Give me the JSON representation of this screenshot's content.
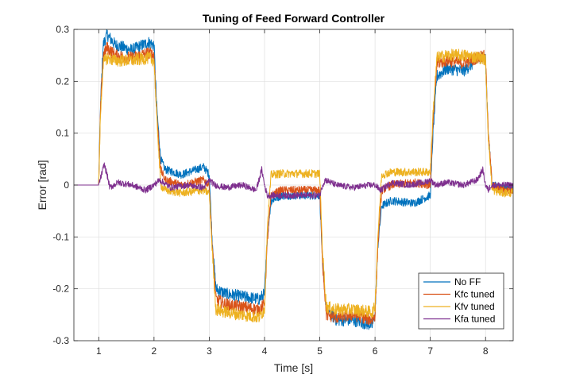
{
  "chart_data": {
    "type": "line",
    "title": "Tuning of Feed Forward Controller",
    "xlabel": "Time [s]",
    "ylabel": "Error [rad]",
    "xlim": [
      0.55,
      8.5
    ],
    "ylim": [
      -0.3,
      0.3
    ],
    "grid": true,
    "legend_position": "bottom-right",
    "x_ticks": [
      1,
      2,
      3,
      4,
      5,
      6,
      7,
      8
    ],
    "x_tick_labels": [
      "1",
      "2",
      "3",
      "4",
      "5",
      "6",
      "7",
      "8"
    ],
    "y_ticks": [
      -0.3,
      -0.2,
      -0.1,
      0,
      0.1,
      0.2,
      0.3
    ],
    "y_tick_labels": [
      "-0.3",
      "-0.2",
      "-0.1",
      "0",
      "0.1",
      "0.2",
      "0.3"
    ],
    "series": [
      {
        "name": "No FF",
        "color": "#0072BD",
        "x": [
          0.55,
          1.0,
          1.03,
          1.08,
          1.15,
          1.3,
          1.6,
          1.9,
          2.0,
          2.05,
          2.12,
          2.2,
          2.5,
          2.9,
          3.0,
          3.05,
          3.12,
          3.3,
          3.6,
          3.9,
          4.0,
          4.05,
          4.12,
          4.3,
          4.7,
          5.0,
          5.05,
          5.12,
          5.3,
          5.6,
          5.95,
          6.0,
          6.05,
          6.12,
          6.3,
          6.7,
          7.0,
          7.05,
          7.12,
          7.3,
          7.6,
          7.95,
          8.0,
          8.05,
          8.12,
          8.3,
          8.5
        ],
        "y": [
          0.0,
          0.0,
          0.15,
          0.27,
          0.29,
          0.27,
          0.26,
          0.275,
          0.27,
          0.15,
          0.05,
          0.03,
          0.02,
          0.035,
          0.02,
          -0.1,
          -0.2,
          -0.21,
          -0.215,
          -0.22,
          -0.21,
          -0.1,
          -0.03,
          -0.02,
          -0.02,
          -0.02,
          -0.15,
          -0.24,
          -0.26,
          -0.26,
          -0.27,
          -0.25,
          -0.12,
          -0.04,
          -0.03,
          -0.035,
          -0.02,
          0.1,
          0.21,
          0.225,
          0.22,
          0.25,
          0.24,
          0.1,
          0.0,
          -0.005,
          -0.005
        ]
      },
      {
        "name": "Kfc tuned",
        "color": "#D95319",
        "x": [
          0.55,
          1.0,
          1.03,
          1.08,
          1.15,
          1.3,
          1.6,
          1.9,
          2.0,
          2.05,
          2.12,
          2.2,
          2.5,
          2.9,
          3.0,
          3.05,
          3.12,
          3.3,
          3.6,
          3.9,
          4.0,
          4.05,
          4.12,
          4.3,
          4.7,
          5.0,
          5.05,
          5.12,
          5.3,
          5.6,
          5.95,
          6.0,
          6.05,
          6.12,
          6.3,
          6.7,
          7.0,
          7.05,
          7.12,
          7.3,
          7.6,
          7.95,
          8.0,
          8.05,
          8.12,
          8.3,
          8.5
        ],
        "y": [
          0.0,
          0.0,
          0.14,
          0.25,
          0.265,
          0.25,
          0.245,
          0.255,
          0.25,
          0.14,
          0.03,
          0.01,
          0.0,
          0.01,
          0.0,
          -0.11,
          -0.22,
          -0.23,
          -0.235,
          -0.24,
          -0.23,
          -0.11,
          -0.02,
          -0.01,
          -0.01,
          -0.01,
          -0.15,
          -0.25,
          -0.255,
          -0.25,
          -0.26,
          -0.25,
          -0.12,
          -0.01,
          0.0,
          0.005,
          0.0,
          0.12,
          0.235,
          0.24,
          0.235,
          0.25,
          0.245,
          0.1,
          0.0,
          -0.01,
          -0.01
        ]
      },
      {
        "name": "Kfv tuned",
        "color": "#EDB120",
        "x": [
          0.55,
          1.0,
          1.03,
          1.08,
          1.15,
          1.3,
          1.6,
          1.9,
          2.0,
          2.05,
          2.12,
          2.2,
          2.5,
          2.9,
          3.0,
          3.05,
          3.12,
          3.3,
          3.6,
          3.9,
          4.0,
          4.05,
          4.12,
          4.3,
          4.7,
          5.0,
          5.05,
          5.12,
          5.3,
          5.6,
          5.95,
          6.0,
          6.05,
          6.12,
          6.3,
          6.7,
          7.0,
          7.05,
          7.12,
          7.3,
          7.6,
          7.95,
          8.0,
          8.05,
          8.12,
          8.3,
          8.5
        ],
        "y": [
          0.0,
          0.0,
          0.13,
          0.235,
          0.245,
          0.24,
          0.24,
          0.245,
          0.24,
          0.13,
          0.0,
          -0.01,
          -0.015,
          -0.01,
          -0.015,
          -0.12,
          -0.24,
          -0.245,
          -0.25,
          -0.255,
          -0.24,
          -0.08,
          0.02,
          0.022,
          0.022,
          0.022,
          -0.13,
          -0.235,
          -0.24,
          -0.24,
          -0.245,
          -0.235,
          -0.1,
          0.02,
          0.025,
          0.025,
          0.025,
          0.14,
          0.245,
          0.25,
          0.25,
          0.245,
          0.24,
          0.09,
          -0.01,
          -0.015,
          -0.015
        ]
      },
      {
        "name": "Kfa tuned",
        "color": "#7E2F8E",
        "x": [
          0.55,
          1.0,
          1.05,
          1.1,
          1.15,
          1.2,
          1.35,
          1.6,
          1.85,
          2.0,
          2.1,
          2.3,
          2.6,
          2.9,
          3.0,
          3.1,
          3.3,
          3.6,
          3.85,
          3.95,
          4.0,
          4.05,
          4.1,
          4.3,
          4.7,
          5.0,
          5.05,
          5.1,
          5.3,
          5.6,
          5.9,
          6.0,
          6.1,
          6.3,
          6.6,
          6.9,
          7.0,
          7.1,
          7.3,
          7.6,
          7.85,
          7.95,
          8.0,
          8.05,
          8.1,
          8.3,
          8.5
        ],
        "y": [
          0.0,
          0.0,
          0.02,
          0.04,
          0.02,
          -0.005,
          0.005,
          0.0,
          -0.01,
          0.0,
          0.01,
          -0.005,
          0.0,
          -0.005,
          0.01,
          0.0,
          -0.005,
          0.0,
          -0.01,
          0.03,
          0.0,
          -0.02,
          -0.02,
          -0.02,
          -0.02,
          -0.02,
          0.0,
          0.01,
          0.0,
          -0.005,
          0.0,
          0.0,
          -0.01,
          0.005,
          0.0,
          0.005,
          0.01,
          0.0,
          0.005,
          0.0,
          0.01,
          0.03,
          0.0,
          -0.01,
          0.0,
          0.0,
          0.0
        ]
      }
    ]
  }
}
